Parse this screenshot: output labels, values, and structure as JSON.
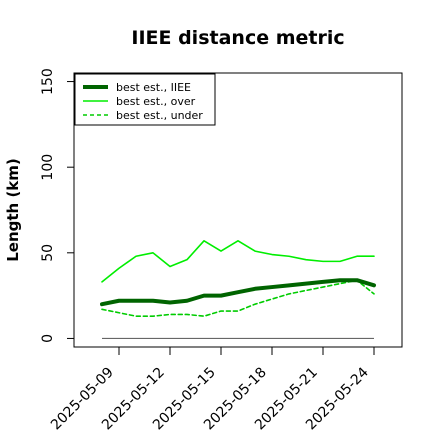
{
  "chart_data": {
    "type": "line",
    "title": "IIEE distance metric",
    "xlabel": "",
    "ylabel": "Length (km)",
    "x": [
      "2025-05-08",
      "2025-05-09",
      "2025-05-10",
      "2025-05-11",
      "2025-05-12",
      "2025-05-13",
      "2025-05-14",
      "2025-05-15",
      "2025-05-16",
      "2025-05-17",
      "2025-05-18",
      "2025-05-19",
      "2025-05-20",
      "2025-05-21",
      "2025-05-22",
      "2025-05-23",
      "2025-05-24"
    ],
    "xticks": [
      "2025-05-09",
      "2025-05-12",
      "2025-05-15",
      "2025-05-18",
      "2025-05-21",
      "2025-05-24"
    ],
    "ylim": [
      -5,
      155
    ],
    "yticks": [
      0,
      50,
      100,
      150
    ],
    "series": [
      {
        "name": "best est., IIEE",
        "color": "#006400",
        "style": "solid-thick",
        "values": [
          20,
          22,
          22,
          22,
          21,
          22,
          25,
          25,
          27,
          29,
          30,
          31,
          32,
          33,
          34,
          34,
          31
        ]
      },
      {
        "name": "best est., over",
        "color": "#00ee00",
        "style": "solid",
        "values": [
          33,
          41,
          48,
          50,
          42,
          46,
          57,
          51,
          57,
          51,
          49,
          48,
          46,
          45,
          45,
          48,
          48
        ]
      },
      {
        "name": "best est., under",
        "color": "#00cc00",
        "style": "dashed",
        "values": [
          17,
          15,
          13,
          13,
          14,
          14,
          13,
          16,
          16,
          20,
          23,
          26,
          28,
          30,
          32,
          34,
          26
        ]
      }
    ],
    "reference_line": {
      "y": 0,
      "color": "#666666"
    },
    "grid": false,
    "legend": {
      "placement": "top-left"
    }
  }
}
